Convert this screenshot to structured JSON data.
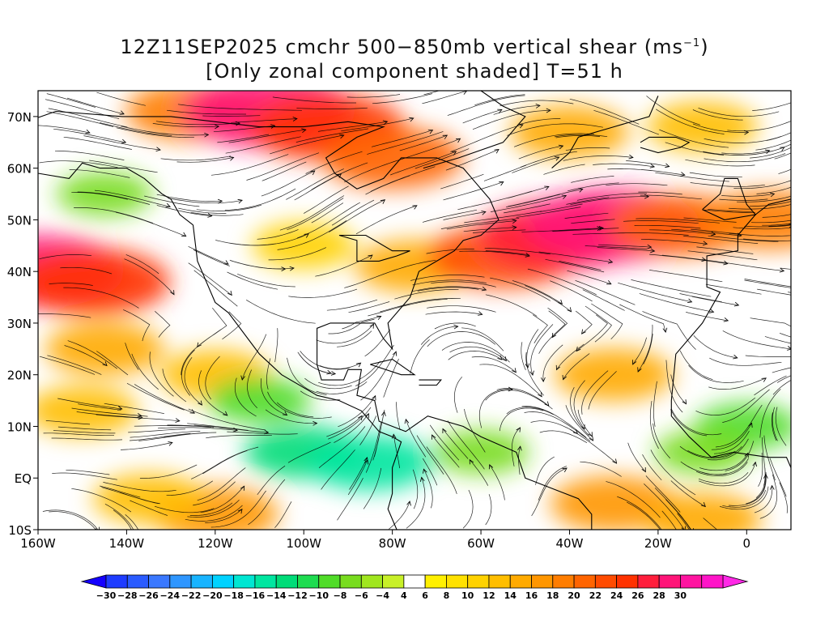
{
  "title": {
    "line1_text": "12Z11SEP2025 cmchr 500−850mb vertical shear (ms",
    "line1_sup": "−1",
    "line1_end": ")",
    "line2": "[Only zonal component shaded] T=51 h"
  },
  "map": {
    "projection": "lat-lon",
    "lon_range": [
      -160,
      10
    ],
    "lat_range": [
      -10,
      75
    ],
    "x_ticks": [
      {
        "lon": -160,
        "label": "160W"
      },
      {
        "lon": -140,
        "label": "140W"
      },
      {
        "lon": -120,
        "label": "120W"
      },
      {
        "lon": -100,
        "label": "100W"
      },
      {
        "lon": -80,
        "label": "80W"
      },
      {
        "lon": -60,
        "label": "60W"
      },
      {
        "lon": -40,
        "label": "40W"
      },
      {
        "lon": -20,
        "label": "20W"
      },
      {
        "lon": 0,
        "label": "0"
      }
    ],
    "y_ticks": [
      {
        "lat": 70,
        "label": "70N"
      },
      {
        "lat": 60,
        "label": "60N"
      },
      {
        "lat": 50,
        "label": "50N"
      },
      {
        "lat": 40,
        "label": "40N"
      },
      {
        "lat": 30,
        "label": "30N"
      },
      {
        "lat": 20,
        "label": "20N"
      },
      {
        "lat": 10,
        "label": "10N"
      },
      {
        "lat": 0,
        "label": "EQ"
      },
      {
        "lat": -10,
        "label": "10S"
      }
    ]
  },
  "colorbar": {
    "levels": [
      -30,
      -28,
      -26,
      -24,
      -22,
      -20,
      -18,
      -16,
      -14,
      -12,
      -10,
      -8,
      -6,
      -4,
      4,
      6,
      8,
      10,
      12,
      14,
      16,
      18,
      20,
      22,
      24,
      26,
      28,
      30
    ],
    "colors": [
      "#1e3cff",
      "#2a5bff",
      "#3a78ff",
      "#2e96ff",
      "#18b4ff",
      "#00d2ff",
      "#00e6d2",
      "#00e6a0",
      "#00dc78",
      "#1edc50",
      "#50dc28",
      "#78dc1e",
      "#a0e61e",
      "#c8f028",
      "#ffffff",
      "#fff000",
      "#ffe100",
      "#ffd200",
      "#ffbe00",
      "#ffaa00",
      "#ff9600",
      "#ff7d00",
      "#ff6400",
      "#ff4b00",
      "#ff3200",
      "#ff1e3c",
      "#ff1478",
      "#ff14a0",
      "#ff14c8"
    ],
    "under_color": "#1400ff",
    "over_color": "#ff28e6"
  },
  "field": {
    "units": "ms-1",
    "jets": [
      {
        "lon": -160,
        "lat": 40,
        "value": 28
      },
      {
        "lon": -148,
        "lat": 38,
        "value": 24
      },
      {
        "lon": -125,
        "lat": 71,
        "value": 18
      },
      {
        "lon": -108,
        "lat": 71,
        "value": 28
      },
      {
        "lon": -95,
        "lat": 68,
        "value": 24
      },
      {
        "lon": -80,
        "lat": 62,
        "value": 20
      },
      {
        "lon": -100,
        "lat": 45,
        "value": 10
      },
      {
        "lon": -75,
        "lat": 41,
        "value": 14
      },
      {
        "lon": -55,
        "lat": 43,
        "value": 22
      },
      {
        "lon": -42,
        "lat": 47,
        "value": 26
      },
      {
        "lon": -30,
        "lat": 49,
        "value": 28
      },
      {
        "lon": -15,
        "lat": 49,
        "value": 20
      },
      {
        "lon": 5,
        "lat": 50,
        "value": 18
      },
      {
        "lon": -40,
        "lat": 67,
        "value": 14
      },
      {
        "lon": -10,
        "lat": 68,
        "value": 12
      },
      {
        "lon": -145,
        "lat": 25,
        "value": 14
      },
      {
        "lon": -120,
        "lat": 20,
        "value": 12
      },
      {
        "lon": -30,
        "lat": 20,
        "value": 14
      },
      {
        "lon": -120,
        "lat": -7,
        "value": 16
      },
      {
        "lon": -135,
        "lat": -4,
        "value": 12
      },
      {
        "lon": -30,
        "lat": -5,
        "value": 16
      },
      {
        "lon": -10,
        "lat": -8,
        "value": 14
      },
      {
        "lon": -150,
        "lat": 13,
        "value": 12
      },
      {
        "lon": -100,
        "lat": 5,
        "value": -14
      },
      {
        "lon": -85,
        "lat": 3,
        "value": -16
      },
      {
        "lon": -110,
        "lat": 15,
        "value": -10
      },
      {
        "lon": -60,
        "lat": 5,
        "value": -8
      },
      {
        "lon": 0,
        "lat": 10,
        "value": -10
      },
      {
        "lon": -145,
        "lat": 55,
        "value": -8
      },
      {
        "lon": -10,
        "lat": 5,
        "value": -8
      }
    ]
  }
}
